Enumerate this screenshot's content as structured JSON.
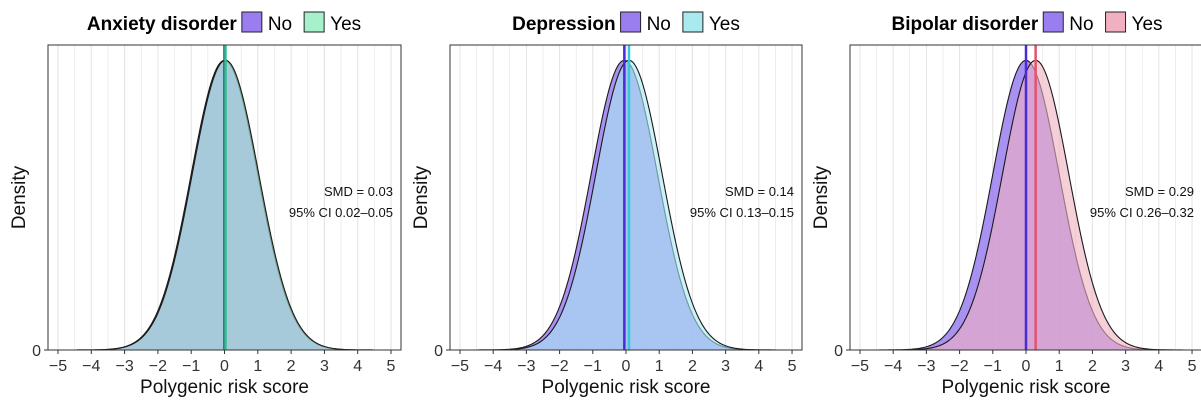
{
  "chart_data": [
    {
      "type": "area",
      "title": "Anxiety disorder",
      "xlabel": "Polygenic risk score",
      "ylabel": "Density",
      "xlim": [
        -5.3,
        5.3
      ],
      "ylim": [
        0,
        0.42
      ],
      "x_ticks": [
        "−5",
        "−4",
        "−3",
        "−2",
        "−1",
        "0",
        "1",
        "2",
        "3",
        "4",
        "5"
      ],
      "y_ticks": [
        "0"
      ],
      "grid": true,
      "legend": {
        "placement": "top",
        "entries": [
          "No",
          "Yes"
        ]
      },
      "colors": {
        "No": "#9a7ef0",
        "Yes": "#a6f0cc",
        "No_line": "#4b2bd6",
        "Yes_line": "#2ec27e"
      },
      "series": [
        {
          "name": "No",
          "mean": 0.0,
          "sd": 1.0
        },
        {
          "name": "Yes",
          "mean": 0.03,
          "sd": 1.0
        }
      ],
      "annotation": [
        "SMD = 0.03",
        "95% CI 0.02–0.05"
      ]
    },
    {
      "type": "area",
      "title": "Depression",
      "xlabel": "Polygenic risk score",
      "ylabel": "Density",
      "xlim": [
        -5.3,
        5.3
      ],
      "ylim": [
        0,
        0.42
      ],
      "x_ticks": [
        "−5",
        "−4",
        "−3",
        "−2",
        "−1",
        "0",
        "1",
        "2",
        "3",
        "4",
        "5"
      ],
      "y_ticks": [
        "0"
      ],
      "grid": true,
      "legend": {
        "placement": "top",
        "entries": [
          "No",
          "Yes"
        ]
      },
      "colors": {
        "No": "#9a7ef0",
        "Yes": "#a8eaf0",
        "No_line": "#4b2bd6",
        "Yes_line": "#37c8d8"
      },
      "series": [
        {
          "name": "No",
          "mean": -0.05,
          "sd": 1.0
        },
        {
          "name": "Yes",
          "mean": 0.09,
          "sd": 1.0
        }
      ],
      "annotation": [
        "SMD = 0.14",
        "95% CI 0.13–0.15"
      ]
    },
    {
      "type": "area",
      "title": "Bipolar disorder",
      "xlabel": "Polygenic risk score",
      "ylabel": "Density",
      "xlim": [
        -5.3,
        5.3
      ],
      "ylim": [
        0,
        0.42
      ],
      "x_ticks": [
        "−5",
        "−4",
        "−3",
        "−2",
        "−1",
        "0",
        "1",
        "2",
        "3",
        "4",
        "5"
      ],
      "y_ticks": [
        "0"
      ],
      "grid": true,
      "legend": {
        "placement": "top",
        "entries": [
          "No",
          "Yes"
        ]
      },
      "colors": {
        "No": "#9a7ef0",
        "Yes": "#f0b0c0",
        "No_line": "#4b2bd6",
        "Yes_line": "#e8506e"
      },
      "series": [
        {
          "name": "No",
          "mean": 0.0,
          "sd": 1.0
        },
        {
          "name": "Yes",
          "mean": 0.29,
          "sd": 1.0
        }
      ],
      "annotation": [
        "SMD = 0.29",
        "95% CI 0.26–0.32"
      ]
    }
  ]
}
